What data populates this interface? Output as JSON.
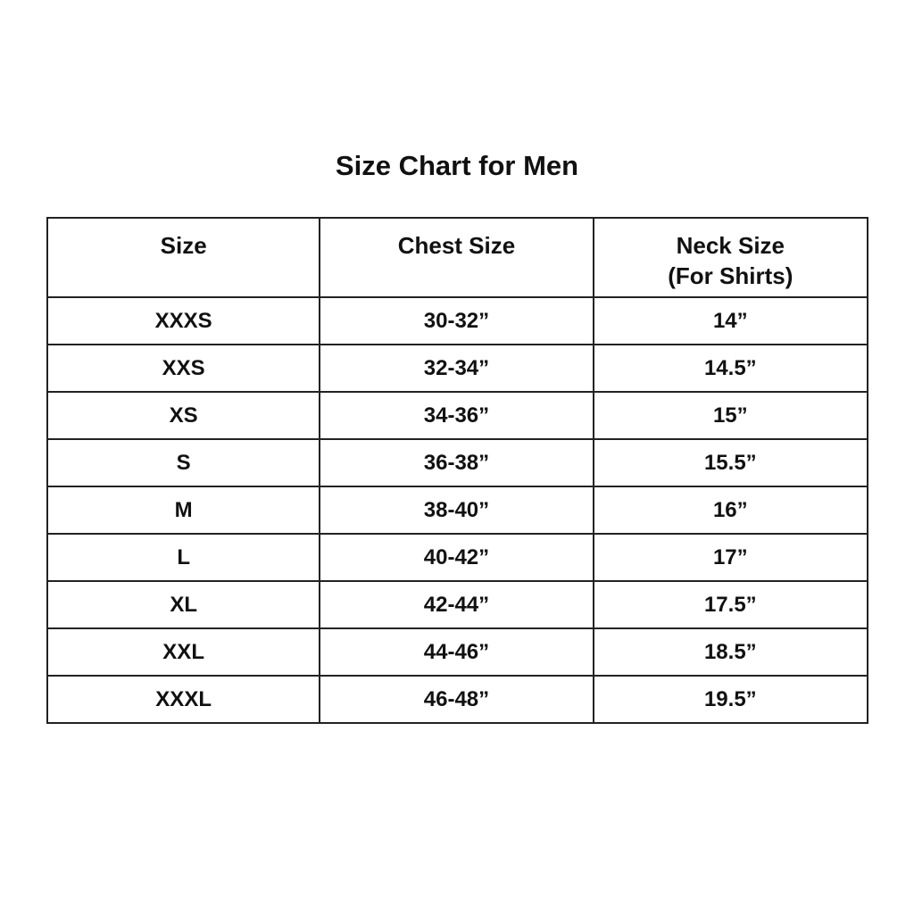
{
  "title": "Size Chart for Men",
  "headers": [
    "Size",
    "Chest Size",
    "Neck Size",
    "(For Shirts)"
  ],
  "rows": [
    [
      "XXXS",
      "30-32”",
      "14”"
    ],
    [
      "XXS",
      "32-34”",
      "14.5”"
    ],
    [
      "XS",
      "34-36”",
      "15”"
    ],
    [
      "S",
      "36-38”",
      "15.5”"
    ],
    [
      "M",
      "38-40”",
      "16”"
    ],
    [
      "L",
      "40-42”",
      "17”"
    ],
    [
      "XL",
      "42-44”",
      "17.5”"
    ],
    [
      "XXL",
      "44-46”",
      "18.5”"
    ],
    [
      "XXXL",
      "46-48”",
      "19.5”"
    ]
  ]
}
